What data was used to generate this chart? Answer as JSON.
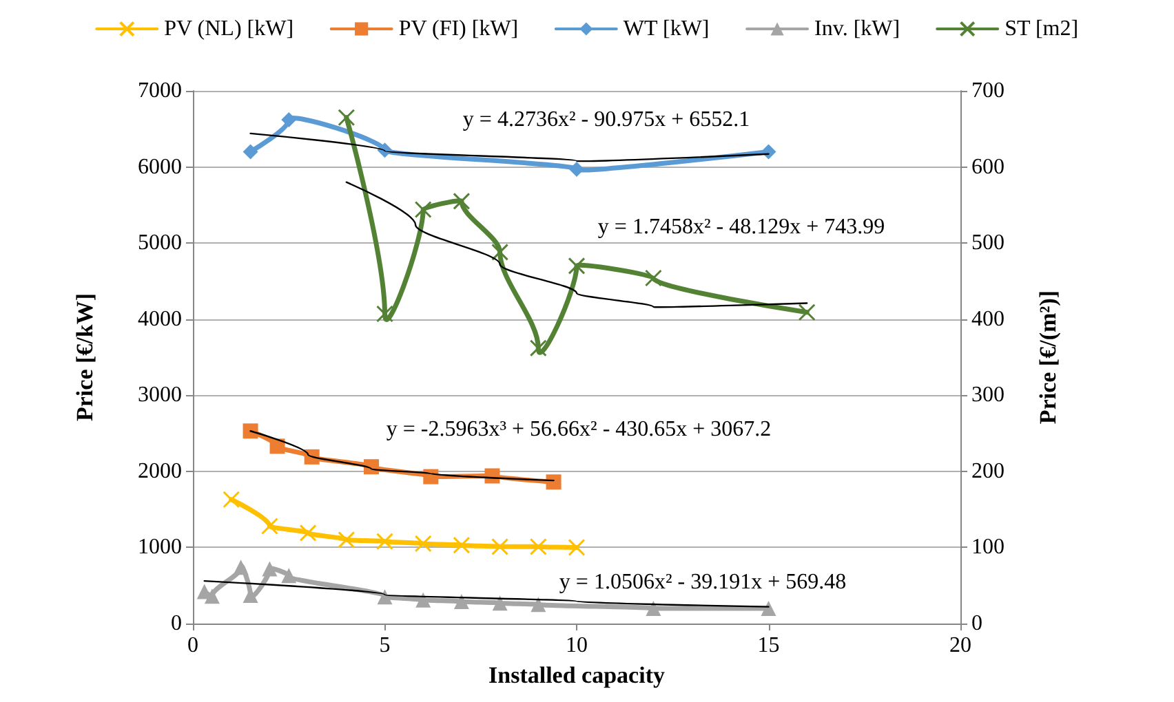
{
  "chart_data": {
    "type": "line",
    "xlabel": "Installed capacity",
    "ylabel": "Price [€/kW]",
    "y2label": "Price [€/(m²)]",
    "xlim": [
      0,
      20
    ],
    "xticks": [
      0,
      5,
      10,
      15,
      20
    ],
    "ylim": [
      0,
      7000
    ],
    "yticks": [
      0,
      1000,
      2000,
      3000,
      4000,
      5000,
      6000,
      7000
    ],
    "y2lim": [
      0,
      700
    ],
    "y2ticks": [
      0,
      100,
      200,
      300,
      400,
      500,
      600,
      700
    ],
    "grid": "y",
    "legend": "top",
    "line_style": "solid",
    "series": [
      {
        "name": "PV (NL) [kW]",
        "color": "#ffc000",
        "marker": "cross",
        "x": [
          1,
          2,
          3,
          4,
          5,
          6,
          7,
          8,
          9,
          10
        ],
        "values": [
          1630,
          1280,
          1190,
          1100,
          1080,
          1050,
          1030,
          1010,
          1010,
          1000
        ]
      },
      {
        "name": "PV (FI) [kW]",
        "color": "#ed7d31",
        "marker": "square",
        "x": [
          1.5,
          2.2,
          3.1,
          4.65,
          6.2,
          7.8,
          9.4
        ],
        "values": [
          2530,
          2330,
          2190,
          2060,
          1930,
          1940,
          1860
        ]
      },
      {
        "name": "WT [kW]",
        "color": "#5b9bd5",
        "marker": "diamond",
        "x": [
          1.5,
          2.5,
          5,
          10,
          15
        ],
        "values": [
          6200,
          6620,
          6220,
          5970,
          6200
        ]
      },
      {
        "name": "Inv. [kW]",
        "color": "#a5a5a5",
        "marker": "triangle",
        "x": [
          0.3,
          0.5,
          1.25,
          1.5,
          2,
          2.5,
          5,
          6,
          7,
          8,
          9,
          12,
          15
        ],
        "values": [
          420,
          360,
          740,
          370,
          720,
          630,
          350,
          310,
          290,
          270,
          250,
          200,
          200
        ]
      },
      {
        "name": "ST [m2]",
        "color": "#548235",
        "marker": "cross",
        "axis": "y2",
        "x": [
          4,
          5,
          6,
          7,
          8,
          9,
          10,
          12,
          16
        ],
        "values": [
          665,
          407,
          544,
          555,
          488,
          362,
          470,
          454,
          409
        ]
      },
      {
        "type": "line",
        "color": "#000000",
        "marker": "none",
        "x": [
          1.5,
          5,
          10,
          15
        ],
        "values": [
          6440,
          6210,
          6080,
          6170
        ]
      },
      {
        "type": "line",
        "color": "#000000",
        "marker": "none",
        "axis": "y2",
        "x": [
          4,
          5.8,
          8,
          10,
          12,
          16
        ],
        "values": [
          580,
          524,
          472,
          434,
          416,
          421
        ]
      },
      {
        "type": "line",
        "color": "#000000",
        "marker": "none",
        "x": [
          1.5,
          3,
          4.65,
          6.2,
          9.4
        ],
        "values": [
          2530,
          2220,
          2030,
          1970,
          1880
        ]
      },
      {
        "type": "line",
        "color": "#000000",
        "marker": "none",
        "x": [
          0.3,
          5,
          10,
          15
        ],
        "values": [
          560,
          380,
          290,
          220
        ]
      }
    ],
    "annotations": [
      "y = 4.2736x² - 90.975x + 6552.1",
      "y = 1.7458x² - 48.129x + 743.99",
      "y = -2.5963x³ + 56.66x² - 430.65x + 3067.2",
      "y = 1.0506x² - 39.191x + 569.48"
    ]
  }
}
